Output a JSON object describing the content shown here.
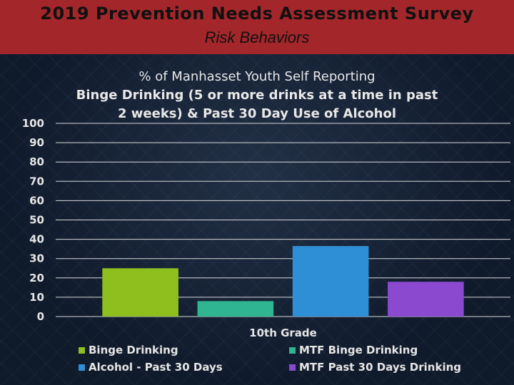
{
  "header": {
    "title": "2019 Prevention Needs Assessment Survey",
    "subtitle": "Risk Behaviors"
  },
  "chart_data": {
    "type": "bar",
    "title_line1": "% of Manhasset Youth Self Reporting",
    "title_line2": "Binge Drinking (5 or more drinks at a time in past 2 weeks) & Past 30 Day Use of Alcohol",
    "categories": [
      "10th Grade"
    ],
    "series": [
      {
        "name": "Binge Drinking",
        "values": [
          25
        ],
        "color": "#8fbf1f"
      },
      {
        "name": "MTF Binge Drinking",
        "values": [
          8
        ],
        "color": "#2fb592"
      },
      {
        "name": "Alcohol - Past 30 Days",
        "values": [
          36.5
        ],
        "color": "#2f8fd6"
      },
      {
        "name": "MTF Past 30 Days Drinking",
        "values": [
          18
        ],
        "color": "#8a49cf"
      }
    ],
    "ylim": [
      0,
      100
    ],
    "yticks": [
      "0",
      "10",
      "20",
      "30",
      "40",
      "50",
      "60",
      "70",
      "80",
      "90",
      "100"
    ],
    "grid": true,
    "legend": "bottom"
  }
}
